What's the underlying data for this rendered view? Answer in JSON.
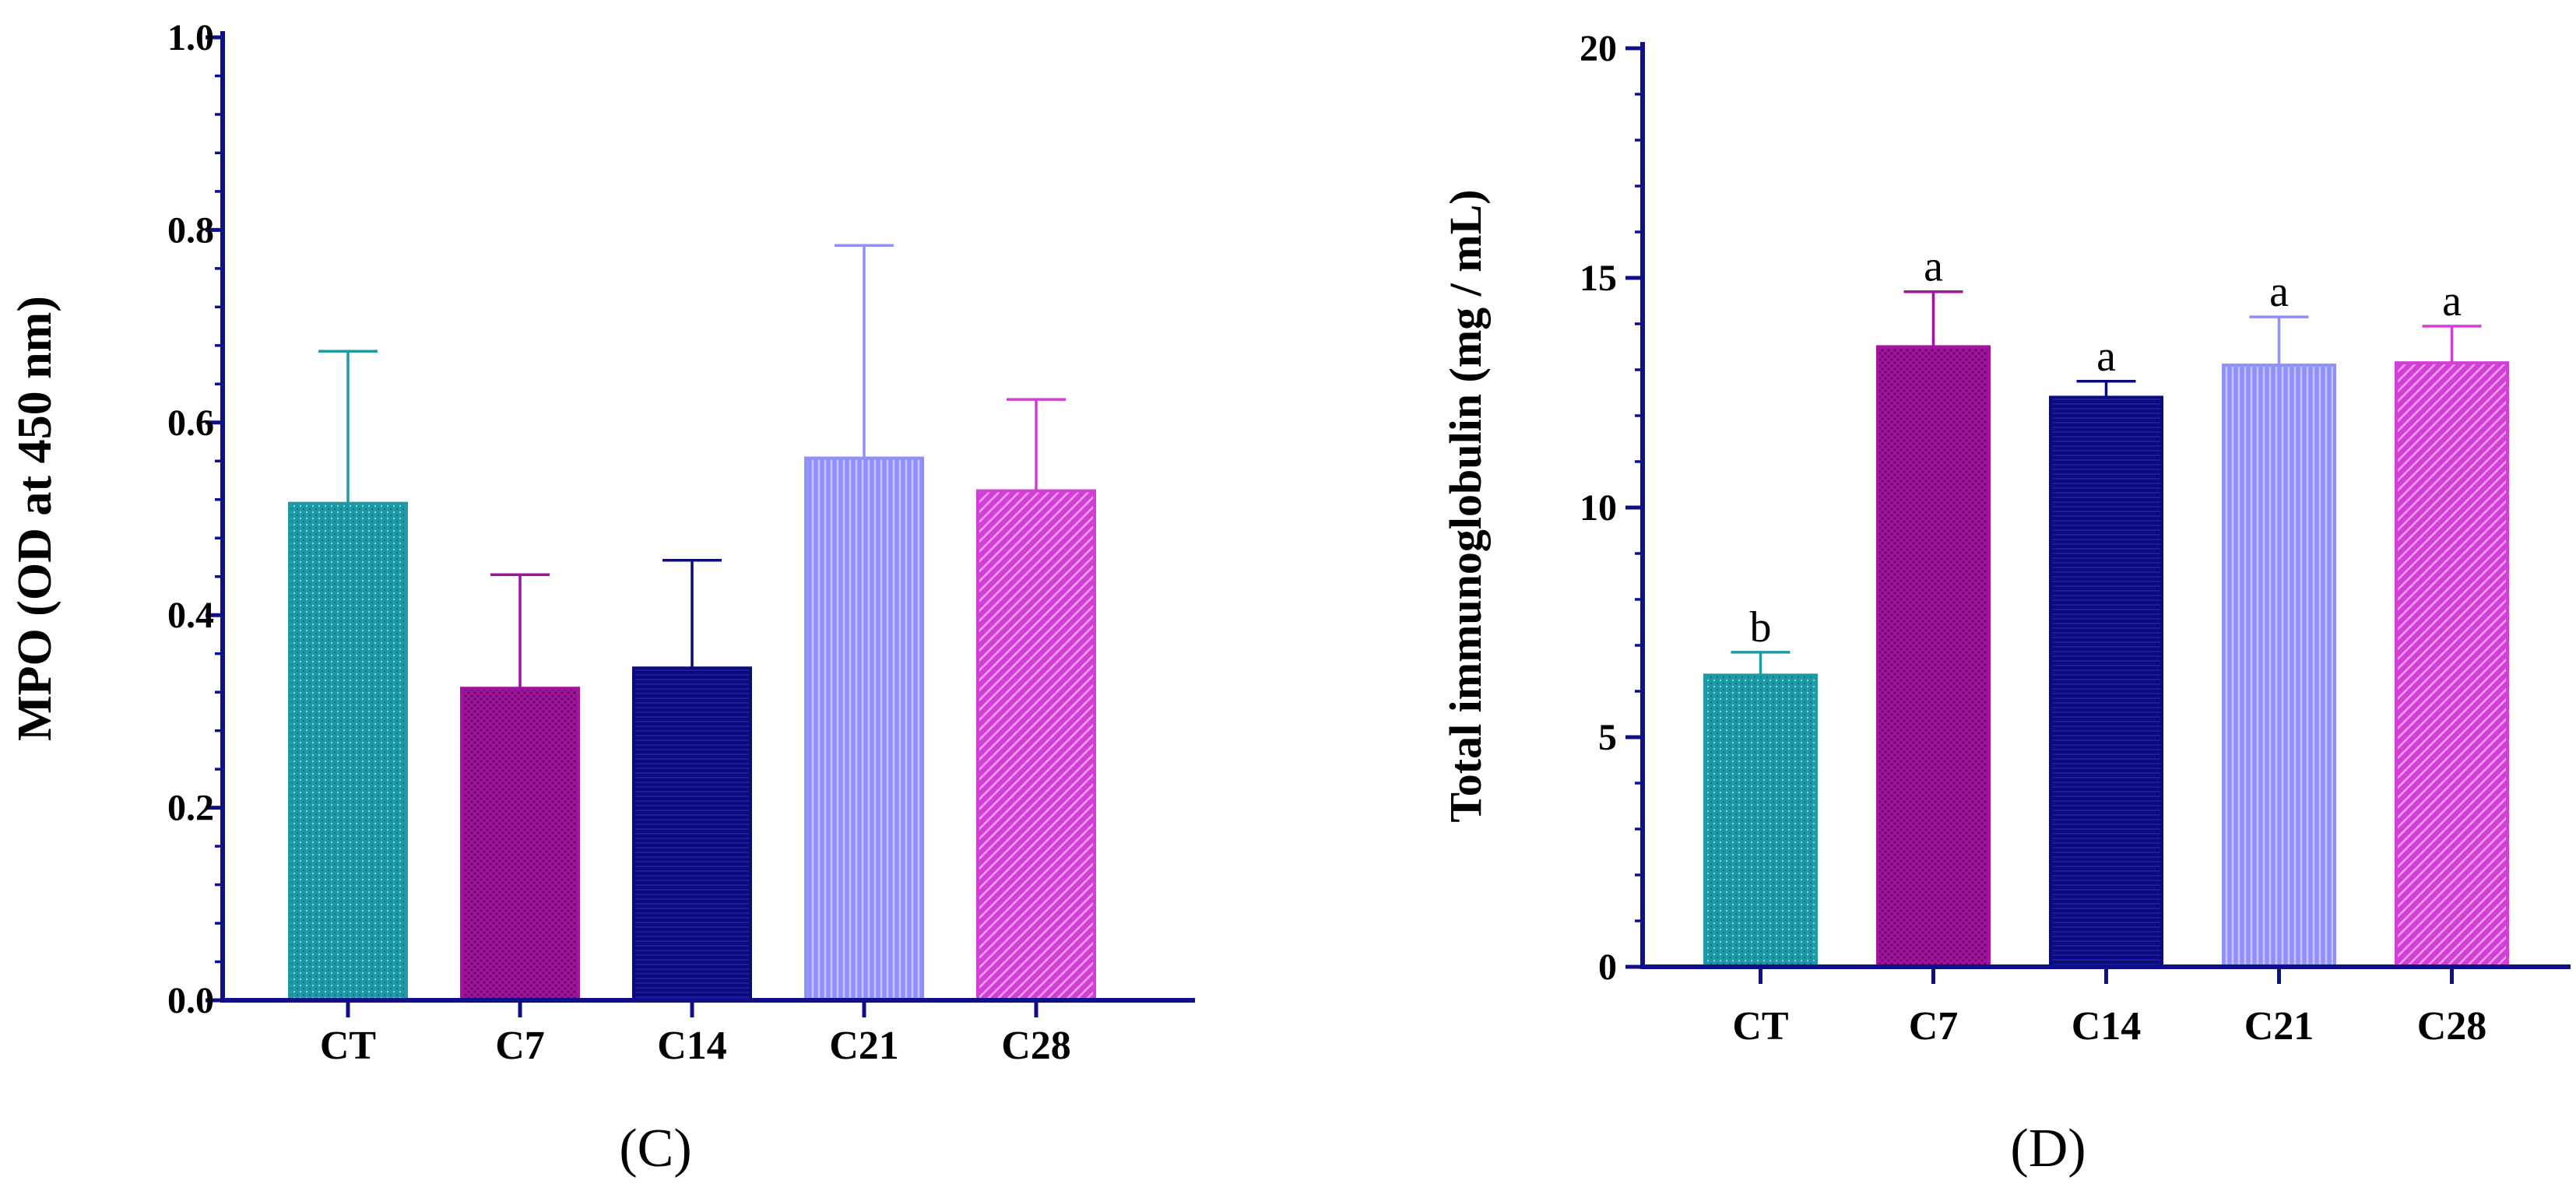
{
  "chart_data": [
    {
      "type": "bar",
      "panel_label": "(C)",
      "title": "",
      "xlabel": "",
      "ylabel": "MPO (OD at 450 nm)",
      "ylim": [
        0,
        1.0
      ],
      "yticks": [
        "0.0",
        "0.2",
        "0.4",
        "0.6",
        "0.8",
        "1.0"
      ],
      "ytick_values": [
        0,
        0.2,
        0.4,
        0.6,
        0.8,
        1.0
      ],
      "minor_step": 0.04,
      "categories": [
        "CT",
        "C7",
        "C14",
        "C21",
        "C28"
      ],
      "values": [
        0.516,
        0.324,
        0.345,
        0.563,
        0.529
      ],
      "errors": [
        0.158,
        0.118,
        0.112,
        0.221,
        0.095
      ],
      "significance": [
        "",
        "",
        "",
        "",
        ""
      ],
      "bar_colors": [
        "#1e9aa6",
        "#a2139f",
        "#0b0b7c",
        "#8f90fb",
        "#d33fd6"
      ],
      "patterns": [
        "dots",
        "dense-dots",
        "horizontal",
        "vertical",
        "diagonal"
      ],
      "grid": false
    },
    {
      "type": "bar",
      "panel_label": "(D)",
      "title": "",
      "xlabel": "",
      "ylabel": "Total immunoglobulin (mg / mL)",
      "ylim": [
        0,
        20
      ],
      "yticks": [
        "0",
        "5",
        "10",
        "15",
        "20"
      ],
      "ytick_values": [
        0,
        5,
        10,
        15,
        20
      ],
      "minor_step": 1,
      "categories": [
        "CT",
        "C7",
        "C14",
        "C21",
        "C28"
      ],
      "values": [
        6.35,
        13.5,
        12.4,
        13.1,
        13.15
      ],
      "errors": [
        0.5,
        1.2,
        0.35,
        1.05,
        0.8
      ],
      "significance": [
        "b",
        "a",
        "a",
        "a",
        "a"
      ],
      "bar_colors": [
        "#1e9aa6",
        "#a2139f",
        "#0b0b7c",
        "#8f90fb",
        "#d33fd6"
      ],
      "patterns": [
        "dots",
        "dense-dots",
        "horizontal",
        "vertical",
        "diagonal"
      ],
      "grid": false
    }
  ],
  "axis_color": "#0f0f8a"
}
